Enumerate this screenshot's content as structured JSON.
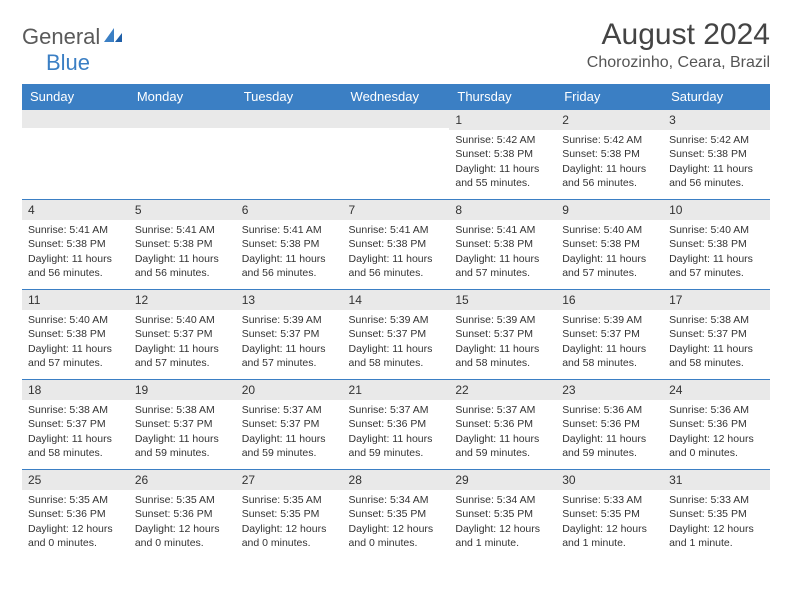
{
  "logo": {
    "text1": "General",
    "text2": "Blue"
  },
  "title": "August 2024",
  "location": "Chorozinho, Ceara, Brazil",
  "header_bg": "#3b7fc4",
  "daynum_bg": "#e9e9e9",
  "border_color": "#3b7fc4",
  "weekdays": [
    "Sunday",
    "Monday",
    "Tuesday",
    "Wednesday",
    "Thursday",
    "Friday",
    "Saturday"
  ],
  "weeks": [
    [
      null,
      null,
      null,
      null,
      {
        "n": "1",
        "sr": "5:42 AM",
        "ss": "5:38 PM",
        "dl": "11 hours and 55 minutes."
      },
      {
        "n": "2",
        "sr": "5:42 AM",
        "ss": "5:38 PM",
        "dl": "11 hours and 56 minutes."
      },
      {
        "n": "3",
        "sr": "5:42 AM",
        "ss": "5:38 PM",
        "dl": "11 hours and 56 minutes."
      }
    ],
    [
      {
        "n": "4",
        "sr": "5:41 AM",
        "ss": "5:38 PM",
        "dl": "11 hours and 56 minutes."
      },
      {
        "n": "5",
        "sr": "5:41 AM",
        "ss": "5:38 PM",
        "dl": "11 hours and 56 minutes."
      },
      {
        "n": "6",
        "sr": "5:41 AM",
        "ss": "5:38 PM",
        "dl": "11 hours and 56 minutes."
      },
      {
        "n": "7",
        "sr": "5:41 AM",
        "ss": "5:38 PM",
        "dl": "11 hours and 56 minutes."
      },
      {
        "n": "8",
        "sr": "5:41 AM",
        "ss": "5:38 PM",
        "dl": "11 hours and 57 minutes."
      },
      {
        "n": "9",
        "sr": "5:40 AM",
        "ss": "5:38 PM",
        "dl": "11 hours and 57 minutes."
      },
      {
        "n": "10",
        "sr": "5:40 AM",
        "ss": "5:38 PM",
        "dl": "11 hours and 57 minutes."
      }
    ],
    [
      {
        "n": "11",
        "sr": "5:40 AM",
        "ss": "5:38 PM",
        "dl": "11 hours and 57 minutes."
      },
      {
        "n": "12",
        "sr": "5:40 AM",
        "ss": "5:37 PM",
        "dl": "11 hours and 57 minutes."
      },
      {
        "n": "13",
        "sr": "5:39 AM",
        "ss": "5:37 PM",
        "dl": "11 hours and 57 minutes."
      },
      {
        "n": "14",
        "sr": "5:39 AM",
        "ss": "5:37 PM",
        "dl": "11 hours and 58 minutes."
      },
      {
        "n": "15",
        "sr": "5:39 AM",
        "ss": "5:37 PM",
        "dl": "11 hours and 58 minutes."
      },
      {
        "n": "16",
        "sr": "5:39 AM",
        "ss": "5:37 PM",
        "dl": "11 hours and 58 minutes."
      },
      {
        "n": "17",
        "sr": "5:38 AM",
        "ss": "5:37 PM",
        "dl": "11 hours and 58 minutes."
      }
    ],
    [
      {
        "n": "18",
        "sr": "5:38 AM",
        "ss": "5:37 PM",
        "dl": "11 hours and 58 minutes."
      },
      {
        "n": "19",
        "sr": "5:38 AM",
        "ss": "5:37 PM",
        "dl": "11 hours and 59 minutes."
      },
      {
        "n": "20",
        "sr": "5:37 AM",
        "ss": "5:37 PM",
        "dl": "11 hours and 59 minutes."
      },
      {
        "n": "21",
        "sr": "5:37 AM",
        "ss": "5:36 PM",
        "dl": "11 hours and 59 minutes."
      },
      {
        "n": "22",
        "sr": "5:37 AM",
        "ss": "5:36 PM",
        "dl": "11 hours and 59 minutes."
      },
      {
        "n": "23",
        "sr": "5:36 AM",
        "ss": "5:36 PM",
        "dl": "11 hours and 59 minutes."
      },
      {
        "n": "24",
        "sr": "5:36 AM",
        "ss": "5:36 PM",
        "dl": "12 hours and 0 minutes."
      }
    ],
    [
      {
        "n": "25",
        "sr": "5:35 AM",
        "ss": "5:36 PM",
        "dl": "12 hours and 0 minutes."
      },
      {
        "n": "26",
        "sr": "5:35 AM",
        "ss": "5:36 PM",
        "dl": "12 hours and 0 minutes."
      },
      {
        "n": "27",
        "sr": "5:35 AM",
        "ss": "5:35 PM",
        "dl": "12 hours and 0 minutes."
      },
      {
        "n": "28",
        "sr": "5:34 AM",
        "ss": "5:35 PM",
        "dl": "12 hours and 0 minutes."
      },
      {
        "n": "29",
        "sr": "5:34 AM",
        "ss": "5:35 PM",
        "dl": "12 hours and 1 minute."
      },
      {
        "n": "30",
        "sr": "5:33 AM",
        "ss": "5:35 PM",
        "dl": "12 hours and 1 minute."
      },
      {
        "n": "31",
        "sr": "5:33 AM",
        "ss": "5:35 PM",
        "dl": "12 hours and 1 minute."
      }
    ]
  ],
  "labels": {
    "sunrise": "Sunrise: ",
    "sunset": "Sunset: ",
    "daylight": "Daylight: "
  }
}
